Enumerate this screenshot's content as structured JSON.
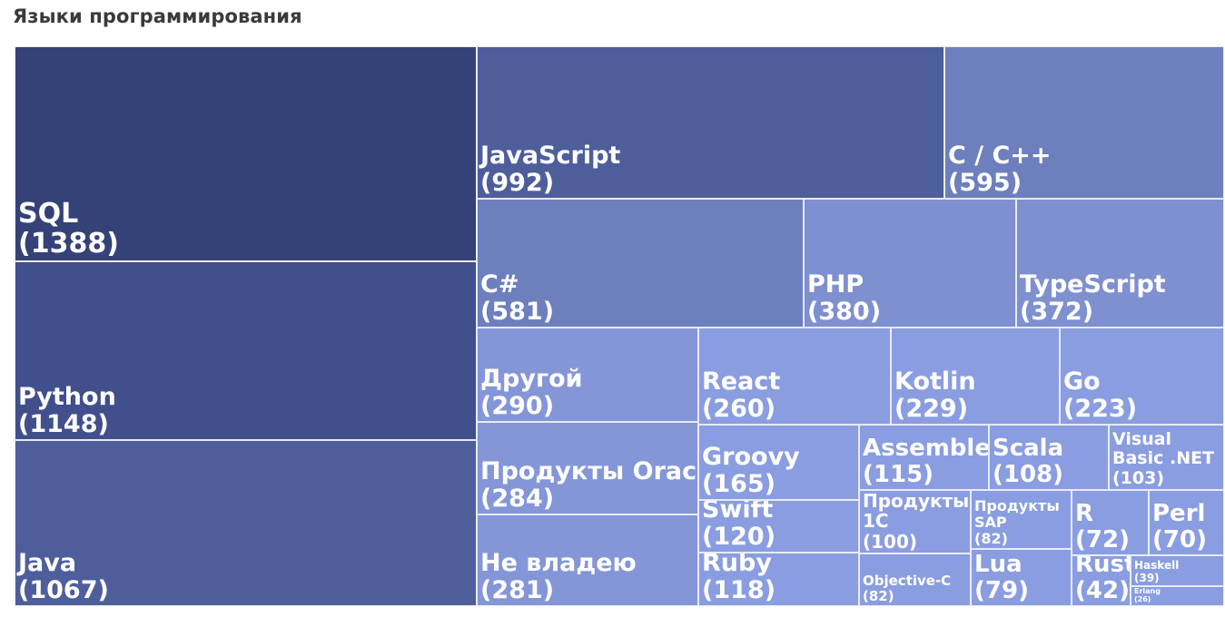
{
  "chart_data": {
    "type": "treemap",
    "title": "Языки программирования",
    "items": [
      {
        "name": "SQL",
        "value": 1388
      },
      {
        "name": "Python",
        "value": 1148
      },
      {
        "name": "Java",
        "value": 1067
      },
      {
        "name": "JavaScript",
        "value": 992
      },
      {
        "name": "C / C++",
        "value": 595
      },
      {
        "name": "C#",
        "value": 581
      },
      {
        "name": "PHP",
        "value": 380
      },
      {
        "name": "TypeScript",
        "value": 372
      },
      {
        "name": "Другой",
        "value": 290
      },
      {
        "name": "Продукты Oracle",
        "value": 284
      },
      {
        "name": "Не владею",
        "value": 281
      },
      {
        "name": "React",
        "value": 260
      },
      {
        "name": "Kotlin",
        "value": 229
      },
      {
        "name": "Go",
        "value": 223
      },
      {
        "name": "Groovy",
        "value": 165
      },
      {
        "name": "Swift",
        "value": 120
      },
      {
        "name": "Ruby",
        "value": 118
      },
      {
        "name": "Assembler",
        "value": 115
      },
      {
        "name": "Scala",
        "value": 108
      },
      {
        "name": "Visual Basic .NET",
        "value": 103
      },
      {
        "name": "Продукты 1С",
        "value": 100
      },
      {
        "name": "Objective-C",
        "value": 82
      },
      {
        "name": "Продукты SAP",
        "value": 82
      },
      {
        "name": "Lua",
        "value": 79
      },
      {
        "name": "R",
        "value": 72
      },
      {
        "name": "Perl",
        "value": 70
      },
      {
        "name": "Rust",
        "value": 42
      },
      {
        "name": "Haskell",
        "value": 39
      },
      {
        "name": "Erlang",
        "value": 26
      }
    ],
    "color_scale": [
      "#344277",
      "#414f8c",
      "#4e5e9b",
      "#6d7fbd",
      "#7f90d0",
      "#8496d8",
      "#8a9de0"
    ]
  }
}
